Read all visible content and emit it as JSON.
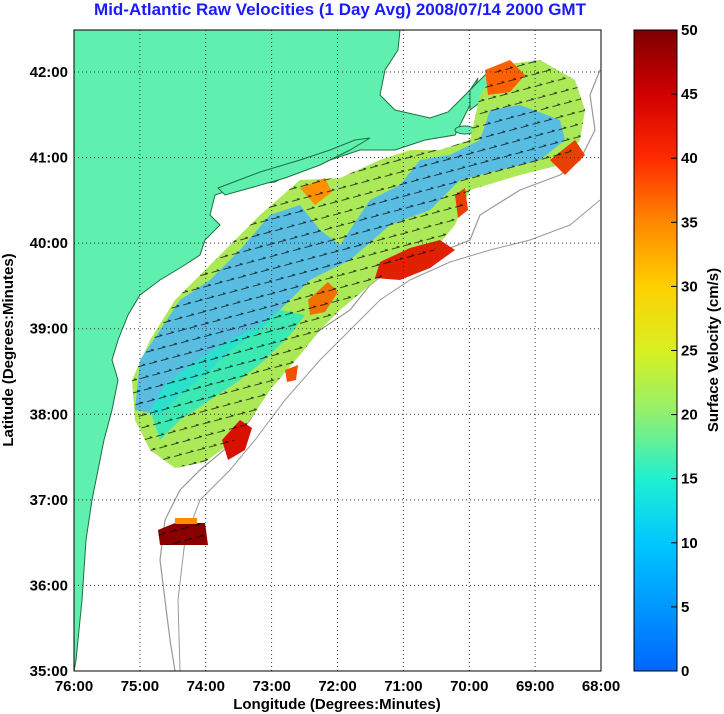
{
  "title": "Mid-Atlantic Raw Velocities (1 Day Avg) 2008/07/14 2000 GMT",
  "map": {
    "xlabel": "Longitude (Degrees:Minutes)",
    "ylabel": "Latitude (Degrees:Minutes)",
    "lon_ticks": [
      "76:00",
      "75:00",
      "74:00",
      "73:00",
      "72:00",
      "71:00",
      "70:00",
      "69:00",
      "68:00"
    ],
    "lat_ticks": [
      "42:00",
      "41:00",
      "40:00",
      "39:00",
      "38:00",
      "37:00",
      "36:00",
      "35:00"
    ],
    "land_color": "#5ff0b0",
    "grid": "dotted"
  },
  "colorbar": {
    "label": "Surface Velocity (cm/s)",
    "ticks": [
      "50",
      "45",
      "40",
      "35",
      "30",
      "25",
      "20",
      "15",
      "10",
      "5",
      "0"
    ],
    "range": [
      0,
      50
    ]
  }
}
